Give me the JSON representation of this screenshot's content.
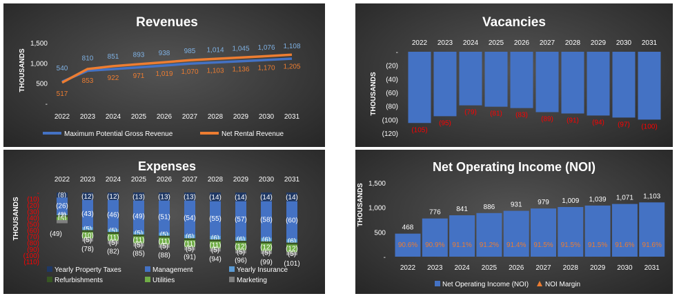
{
  "colors": {
    "blue": "#4472c4",
    "orange": "#ed7d31",
    "light_blue": "#5b9bd5",
    "dark_navy": "#1f3864",
    "dark_green": "#375623",
    "green": "#70ad47",
    "gray": "#7f7f7f",
    "red": "#ff0000"
  },
  "revenues": {
    "title": "Revenues",
    "ylabel": "THOUSANDS",
    "yticks": [
      "1,500",
      "1,000",
      "500",
      "-"
    ],
    "legend": [
      "Maximum Potential Gross Revenue",
      "Net Rental Revenue"
    ],
    "chart_data": {
      "type": "line",
      "x": [
        "2022",
        "2023",
        "2024",
        "2025",
        "2026",
        "2027",
        "2028",
        "2029",
        "2030",
        "2031"
      ],
      "ylim": [
        0,
        1500
      ],
      "series": [
        {
          "name": "Maximum Potential Gross Revenue",
          "values": [
            540,
            810,
            851,
            893,
            938,
            985,
            1014,
            1045,
            1076,
            1108
          ],
          "labels": [
            "540",
            "810",
            "851",
            "893",
            "938",
            "985",
            "1,014",
            "1,045",
            "1,076",
            "1,108"
          ]
        },
        {
          "name": "Net Rental Revenue",
          "values": [
            517,
            853,
            922,
            971,
            1019,
            1070,
            1103,
            1136,
            1170,
            1205
          ],
          "labels": [
            "517",
            "853",
            "922",
            "971",
            "1,019",
            "1,070",
            "1,103",
            "1,136",
            "1,170",
            "1,205"
          ]
        }
      ]
    }
  },
  "vacancies": {
    "title": "Vacancies",
    "ylabel": "THOUSANDS",
    "yticks": [
      "-",
      "(20)",
      "(40)",
      "(60)",
      "(80)",
      "(100)",
      "(120)"
    ],
    "chart_data": {
      "type": "bar",
      "categories": [
        "2022",
        "2023",
        "2024",
        "2025",
        "2026",
        "2027",
        "2028",
        "2029",
        "2030",
        "2031"
      ],
      "values": [
        -105,
        -95,
        -79,
        -81,
        -83,
        -89,
        -91,
        -94,
        -97,
        -100
      ],
      "labels": [
        "(105)",
        "(95)",
        "(79)",
        "(81)",
        "(83)",
        "(89)",
        "(91)",
        "(94)",
        "(97)",
        "(100)"
      ],
      "ylim": [
        -120,
        0
      ]
    }
  },
  "expenses": {
    "title": "Expenses",
    "ylabel": "THOUSANDS",
    "yticks": [
      "-",
      "(10)",
      "(20)",
      "(30)",
      "(40)",
      "(50)",
      "(60)",
      "(70)",
      "(80)",
      "(90)",
      "(100)",
      "(110)"
    ],
    "legend": [
      "Yearly Property Taxes",
      "Management",
      "Yearly Insurance",
      "Refurbishments",
      "Utilities",
      "Marketing"
    ],
    "chart_data": {
      "type": "bar",
      "stacked": true,
      "categories": [
        "2022",
        "2023",
        "2024",
        "2025",
        "2026",
        "2027",
        "2028",
        "2029",
        "2030",
        "2031"
      ],
      "ylim": [
        -110,
        0
      ],
      "series": [
        {
          "name": "Yearly Property Taxes",
          "values": [
            -8,
            -12,
            -12,
            -13,
            -13,
            -13,
            -14,
            -14,
            -14,
            -14
          ],
          "labels": [
            "(8)",
            "(12)",
            "(12)",
            "(13)",
            "(13)",
            "(13)",
            "(14)",
            "(14)",
            "(14)",
            "(14)"
          ]
        },
        {
          "name": "Management",
          "values": [
            -26,
            -43,
            -46,
            -49,
            -51,
            -54,
            -55,
            -57,
            -58,
            -60
          ],
          "labels": [
            "(26)",
            "(43)",
            "(46)",
            "(49)",
            "(51)",
            "(54)",
            "(55)",
            "(57)",
            "(58)",
            "(60)"
          ]
        },
        {
          "name": "Yearly Insurance",
          "values": [
            -2,
            -5,
            -5,
            -5,
            -5,
            -6,
            -6,
            -6,
            -6,
            -6
          ],
          "labels": [
            "(2)",
            "(5)",
            "(5)",
            "(5)",
            "(5)",
            "(6)",
            "(6)",
            "(6)",
            "(6)",
            "(6)"
          ]
        },
        {
          "name": "Refurbishments",
          "values": [
            -3,
            -3,
            -3,
            -3,
            -3,
            -3,
            -3,
            -3,
            -3,
            -3
          ],
          "labels": [
            "(3)",
            "",
            "",
            "",
            "",
            "",
            "",
            "",
            "",
            ""
          ]
        },
        {
          "name": "Utilities",
          "values": [
            -5,
            -10,
            -11,
            -11,
            -11,
            -11,
            -11,
            -12,
            -12,
            -12
          ],
          "labels": [
            "(5)",
            "(10)",
            "(11)",
            "(11)",
            "(11)",
            "(11)",
            "(11)",
            "(12)",
            "(12)",
            "(12)"
          ]
        },
        {
          "name": "Marketing",
          "values": [
            -5,
            -5,
            -5,
            -5,
            -5,
            -5,
            -5,
            -5,
            -5,
            -5
          ],
          "labels": [
            "",
            "(5)",
            "(5)",
            "(5)",
            "(5)",
            "(5)",
            "(5)",
            "(5)",
            "(5)",
            "(5)"
          ]
        }
      ],
      "totals": [
        -49,
        -78,
        -82,
        -85,
        -88,
        -91,
        -94,
        -96,
        -99,
        -101
      ],
      "total_labels": [
        "(49)",
        "(78)",
        "(82)",
        "(85)",
        "(88)",
        "(91)",
        "(94)",
        "(96)",
        "(99)",
        "(101)"
      ]
    }
  },
  "noi": {
    "title": "Net Operating Income (NOI)",
    "ylabel": "THOUSANDS",
    "yticks": [
      "1,500",
      "1,000",
      "500",
      "-"
    ],
    "legend": [
      "Net Operating Income (NOI)",
      "NOI Margin"
    ],
    "chart_data": {
      "type": "bar",
      "categories": [
        "2022",
        "2023",
        "2024",
        "2025",
        "2026",
        "2027",
        "2028",
        "2029",
        "2030",
        "2031"
      ],
      "ylim": [
        0,
        1500
      ],
      "series": [
        {
          "name": "Net Operating Income (NOI)",
          "values": [
            468,
            776,
            841,
            886,
            931,
            979,
            1009,
            1039,
            1071,
            1103
          ],
          "labels": [
            "468",
            "776",
            "841",
            "886",
            "931",
            "979",
            "1,009",
            "1,039",
            "1,071",
            "1,103"
          ]
        },
        {
          "name": "NOI Margin",
          "values": [
            90.6,
            90.9,
            91.1,
            91.2,
            91.4,
            91.5,
            91.5,
            91.5,
            91.6,
            91.6
          ],
          "labels": [
            "90.6%",
            "90.9%",
            "91.1%",
            "91.2%",
            "91.4%",
            "91.5%",
            "91.5%",
            "91.5%",
            "91.6%",
            "91.6%"
          ]
        }
      ]
    }
  }
}
